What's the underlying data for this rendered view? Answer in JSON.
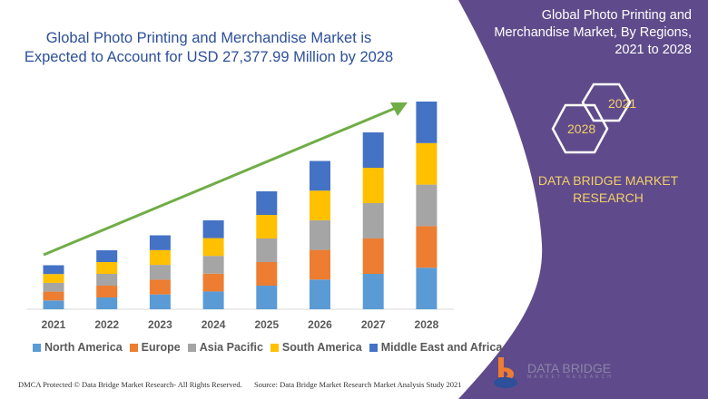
{
  "header": {
    "title": "Global Photo Printing and Merchandise Market is Expected to Account for USD 27,377.99 Million by 2028"
  },
  "side_panel": {
    "title": "Global Photo Printing and Merchandise Market, By Regions, 2021 to 2028",
    "hex_years": [
      "2021",
      "2028"
    ],
    "brand": "DATA BRIDGE MARKET RESEARCH",
    "logo_text": "DATA BRIDGE",
    "logo_subtext": "MARKET RESEARCH",
    "color": "#5f4b8b"
  },
  "footer": {
    "left": "DMCA Protected © Data Bridge Market Research- All Rights Reserved.",
    "right": "Source: Data Bridge Market Research Market Analysis Study 2021"
  },
  "chart_data": {
    "type": "bar",
    "stacked": true,
    "y_axis_shown": false,
    "grid": false,
    "legend_position": "bottom",
    "trend_arrow_color": "#70ad47",
    "categories": [
      "2021",
      "2022",
      "2023",
      "2024",
      "2025",
      "2026",
      "2027",
      "2028"
    ],
    "series": [
      {
        "name": "North America",
        "color": "#5b9bd5",
        "values": [
          9.7,
          13,
          16.3,
          19.6,
          26,
          32.7,
          39,
          45.8
        ]
      },
      {
        "name": "Europe",
        "color": "#ed7d31",
        "values": [
          9.7,
          13,
          16.3,
          19.6,
          26,
          32.7,
          39,
          45.8
        ]
      },
      {
        "name": "Asia Pacific",
        "color": "#a5a5a5",
        "values": [
          9.7,
          13,
          16.3,
          19.6,
          26,
          32.7,
          39,
          45.8
        ]
      },
      {
        "name": "South America",
        "color": "#ffc000",
        "values": [
          9.7,
          13,
          16.3,
          19.6,
          26,
          32.7,
          39,
          45.8
        ]
      },
      {
        "name": "Middle East and Africa",
        "color": "#4472c4",
        "values": [
          9.7,
          13,
          16.3,
          19.6,
          26,
          32.7,
          39,
          45.8
        ]
      }
    ]
  }
}
